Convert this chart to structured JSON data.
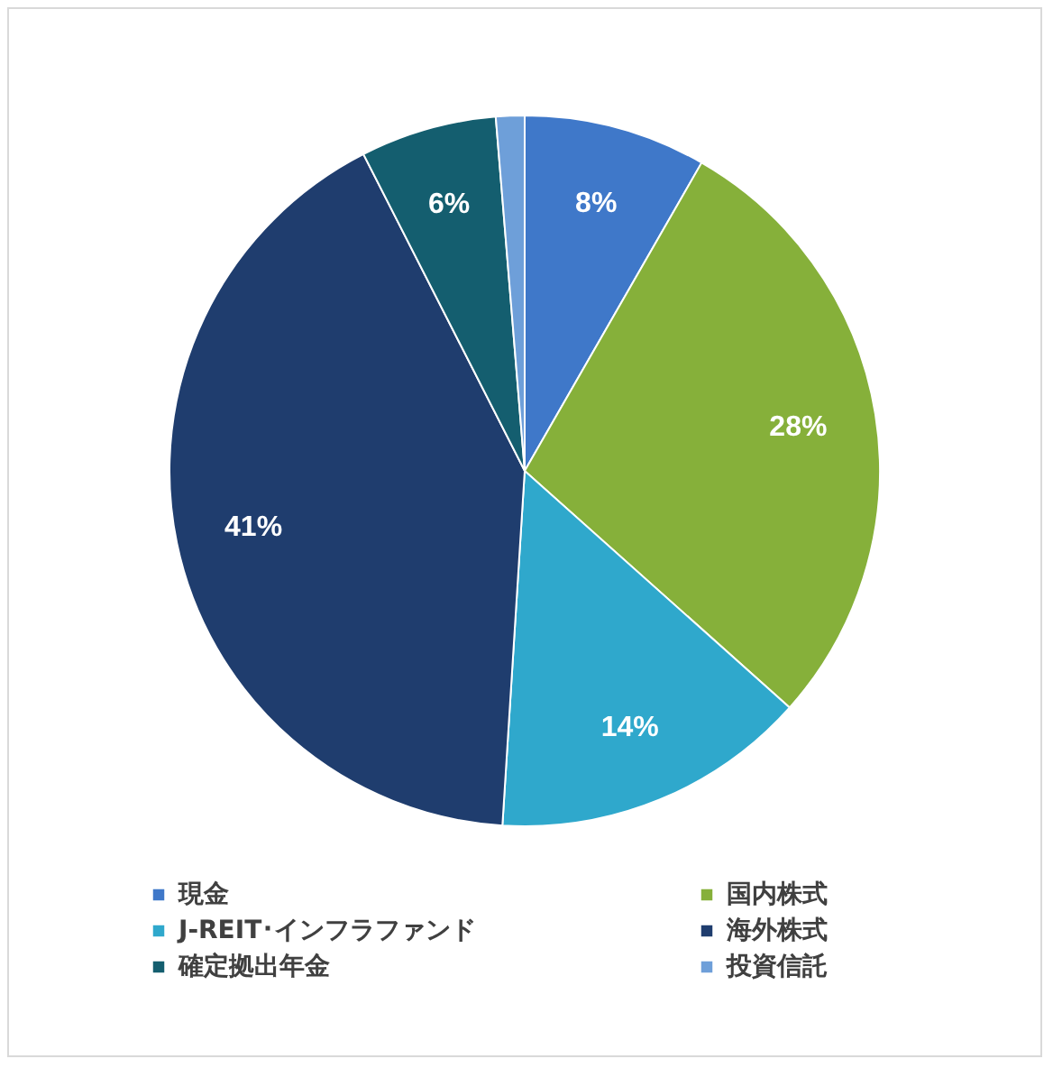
{
  "chart_data": {
    "type": "pie",
    "categories": [
      "現金",
      "国内株式",
      "J-REIT･インフラファンド",
      "海外株式",
      "確定拠出年金",
      "投資信託"
    ],
    "values": [
      8.3,
      28.3,
      14.4,
      41.5,
      6.2,
      1.3
    ],
    "colors": [
      "#3f78c9",
      "#86b03a",
      "#2fa8cc",
      "#1f3d6e",
      "#145e6f",
      "#6e9fd9"
    ],
    "value_labels": [
      "8%",
      "28%",
      "14%",
      "41%",
      "6%",
      null
    ],
    "legend": "bottom"
  }
}
